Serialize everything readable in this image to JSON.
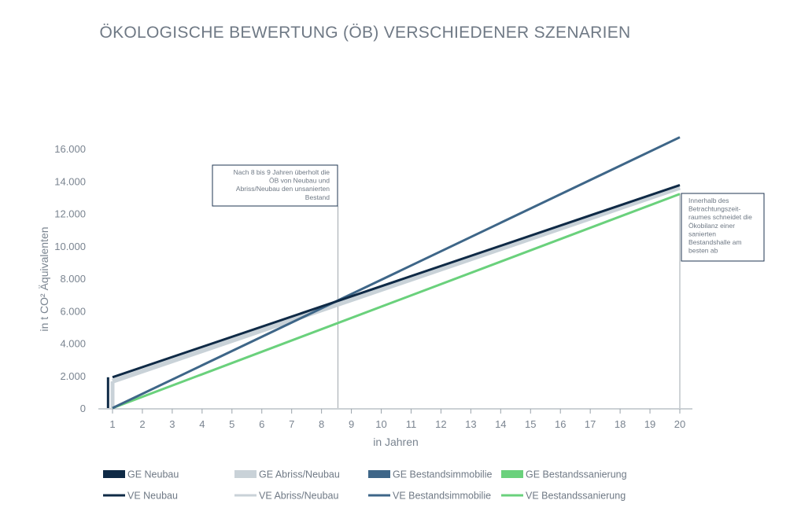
{
  "title": "ÖKOLOGISCHE BEWERTUNG (ÖB) VERSCHIEDENER SZENARIEN",
  "chart_data": {
    "type": "line",
    "title": "ÖKOLOGISCHE BEWERTUNG (ÖB) VERSCHIEDENER SZENARIEN",
    "xlabel": "in Jahren",
    "ylabel": "in t CO² Äquivalenten",
    "x": [
      1,
      20
    ],
    "xlim": [
      1,
      20
    ],
    "ylim": [
      0,
      16000
    ],
    "x_ticks": [
      "1",
      "2",
      "3",
      "4",
      "5",
      "6",
      "7",
      "8",
      "9",
      "10",
      "11",
      "12",
      "13",
      "14",
      "15",
      "16",
      "17",
      "18",
      "19",
      "20"
    ],
    "y_ticks": [
      {
        "value": 0,
        "label": "0"
      },
      {
        "value": 2000,
        "label": "2.000"
      },
      {
        "value": 4000,
        "label": "4.000"
      },
      {
        "value": 6000,
        "label": "6.000"
      },
      {
        "value": 8000,
        "label": "8.000"
      },
      {
        "value": 10000,
        "label": "10.000"
      },
      {
        "value": 12000,
        "label": "12.000"
      },
      {
        "value": 14000,
        "label": "14.000"
      },
      {
        "value": 16000,
        "label": "16.000"
      }
    ],
    "grid": false,
    "legend_position": "bottom",
    "bars": [
      {
        "name": "GE Neubau",
        "x": 0.85,
        "value": 1900,
        "color": "#0f2a46"
      },
      {
        "name": "GE Abriss/Neubau",
        "x": 1.0,
        "value": 1650,
        "color": "#c9d2d8"
      }
    ],
    "series": [
      {
        "name": "VE Abriss/Neubau",
        "color": "#c9d2d8",
        "width": 6,
        "x": [
          1,
          20
        ],
        "values": [
          1650,
          13600
        ]
      },
      {
        "name": "VE Bestandssanierung",
        "color": "#6ad17c",
        "width": 3,
        "x": [
          1,
          20
        ],
        "values": [
          0,
          13200
        ]
      },
      {
        "name": "VE Bestandsimmobilie",
        "color": "#3e6688",
        "width": 3,
        "x": [
          1,
          20
        ],
        "values": [
          0,
          16700
        ]
      },
      {
        "name": "VE Neubau",
        "color": "#0f2a46",
        "width": 3,
        "x": [
          1,
          20
        ],
        "values": [
          1900,
          13750
        ]
      }
    ],
    "reference_lines": [
      {
        "x": 8.55,
        "label": "Nach 8 bis 9 Jahren überholt die ÖB von Neubau und Abriss/Neubau den unsanierten Bestand"
      },
      {
        "x": 20,
        "label": "Innerhalb des Betrachtungszeitraumes schneidet die Ökobilanz einer sanierten Bestandshalle am besten ab"
      }
    ],
    "annotations": [
      {
        "lines": [
          "Nach 8 bis 9 Jahren überholt die",
          "ÖB von Neubau und",
          "Abriss/Neubau den unsanierten",
          "Bestand"
        ],
        "align": "right"
      },
      {
        "lines": [
          "Innerhalb des",
          "Betrachtungszeit-",
          "raumes schneidet die",
          "Ökobilanz einer",
          "sanierten",
          "Bestandshalle am",
          "besten ab"
        ],
        "align": "left"
      }
    ],
    "legend": [
      {
        "label": "GE Neubau",
        "color": "#0f2a46",
        "kind": "bar"
      },
      {
        "label": "GE Abriss/Neubau",
        "color": "#c9d2d8",
        "kind": "bar"
      },
      {
        "label": "GE Bestandsimmobilie",
        "color": "#3e6688",
        "kind": "bar"
      },
      {
        "label": "GE Bestandssanierung",
        "color": "#6ad17c",
        "kind": "bar"
      },
      {
        "label": "VE Neubau",
        "color": "#0f2a46",
        "kind": "line"
      },
      {
        "label": "VE Abriss/Neubau",
        "color": "#c9d2d8",
        "kind": "line"
      },
      {
        "label": "VE Bestandsimmobilie",
        "color": "#3e6688",
        "kind": "line"
      },
      {
        "label": "VE Bestandssanierung",
        "color": "#6ad17c",
        "kind": "line"
      }
    ]
  }
}
